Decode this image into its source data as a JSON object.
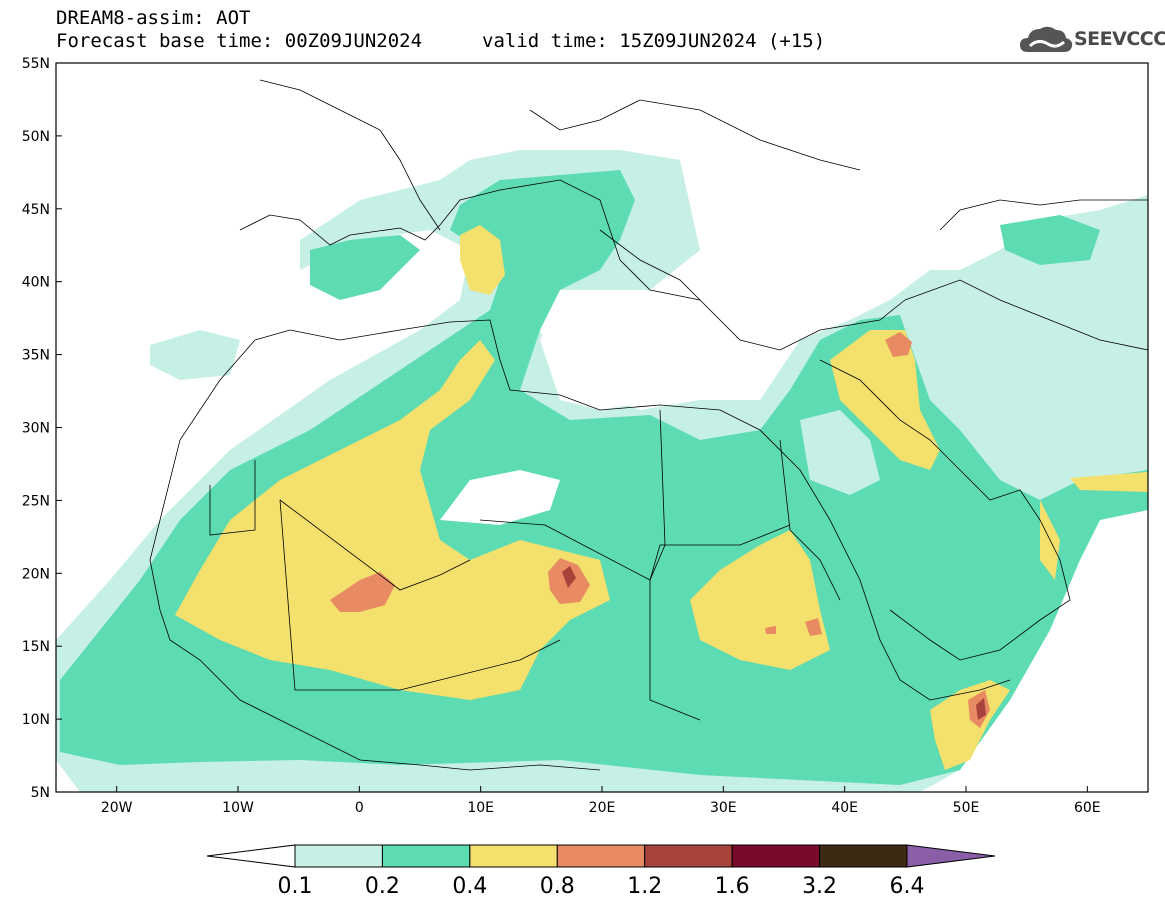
{
  "header": {
    "title": "DREAM8-assim: AOT",
    "base_time": "Forecast base time: 00Z09JUN2024",
    "valid_time": "valid time: 15Z09JUN2024 (+15)"
  },
  "logo": {
    "text": "SEEVCCC",
    "icon": "cloud-icon"
  },
  "chart_data": {
    "type": "heatmap",
    "title": "DREAM8-assim: AOT",
    "xlim": [
      -25,
      65
    ],
    "ylim": [
      5,
      55
    ],
    "x_ticks": [
      -20,
      -10,
      0,
      10,
      20,
      30,
      40,
      50,
      60
    ],
    "x_tick_labels": [
      "20W",
      "10W",
      "0",
      "10E",
      "20E",
      "30E",
      "40E",
      "50E",
      "60E"
    ],
    "y_ticks": [
      5,
      10,
      15,
      20,
      25,
      30,
      35,
      40,
      45,
      50,
      55
    ],
    "y_tick_labels": [
      "5N",
      "10N",
      "15N",
      "20N",
      "25N",
      "30N",
      "35N",
      "40N",
      "45N",
      "50N",
      "55N"
    ],
    "grid": false,
    "legend": {
      "placement": "bottom",
      "levels": [
        "0.1",
        "0.2",
        "0.4",
        "0.8",
        "1.2",
        "1.6",
        "3.2",
        "6.4"
      ],
      "colors": [
        "#ffffff",
        "#c6f0e6",
        "#5ddbb2",
        "#f3e06d",
        "#e88a62",
        "#a8433b",
        "#7a0a2a",
        "#3d2a12",
        "#8a5fa8"
      ]
    }
  }
}
